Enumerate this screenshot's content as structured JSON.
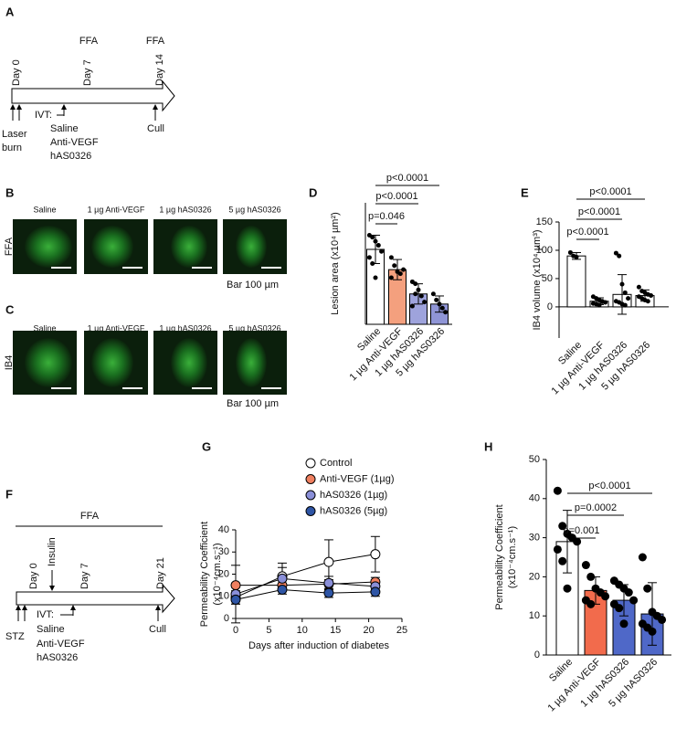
{
  "panel_a": {
    "label": "A",
    "ffa": [
      "FFA",
      "FFA"
    ],
    "days": [
      "Day 0",
      "Day 7",
      "Day 14"
    ],
    "start": [
      "Laser",
      "burn"
    ],
    "ivt": "IVT:",
    "treatments": [
      "Saline",
      "Anti-VEGF",
      "hAS0326"
    ],
    "end": "Cull"
  },
  "panel_b": {
    "label": "B",
    "row": "FFA",
    "columns": [
      "Saline",
      "1 µg Anti-VEGF",
      "1 µg hAS0326",
      "5 µg hAS0326"
    ],
    "scale": "Bar 100 µm"
  },
  "panel_c": {
    "label": "C",
    "row": "IB4",
    "columns": [
      "Saline",
      "1 µg Anti-VEGF",
      "1 µg hAS0326",
      "5 µg hAS0326"
    ],
    "scale": "Bar 100 µm"
  },
  "panel_f": {
    "label": "F",
    "ffa": "FFA",
    "insulin": "Insulin",
    "days": [
      "Day 0",
      "Day 7",
      "Day 21"
    ],
    "start": "STZ",
    "ivt": "IVT:",
    "treatments": [
      "Saline",
      "Anti-VEGF",
      "hAS0326"
    ],
    "end": "Cull"
  },
  "chart_data": [
    {
      "panel": "D",
      "type": "bar",
      "ylabel": "Lesion area (x10⁴ µm²)",
      "categories": [
        "Saline",
        "1 µg Anti-VEGF",
        "1 µg hAS0326",
        "5 µg hAS0326"
      ],
      "values": [
        3.7,
        2.7,
        1.5,
        1.0
      ],
      "errors": [
        0.7,
        0.5,
        0.5,
        0.4
      ],
      "points": [
        [
          4.4,
          4.3,
          4.1,
          3.9,
          3.6,
          3.3,
          3.0,
          2.3
        ],
        [
          3.3,
          2.9,
          2.6,
          2.5,
          2.7,
          2.3
        ],
        [
          2.1,
          2.0,
          1.7,
          1.4,
          1.1,
          0.9,
          1.5
        ],
        [
          1.5,
          1.2,
          1.0,
          0.8,
          0.6
        ]
      ],
      "colors": [
        "#ffffff",
        "#f4a07e",
        "#9ea3dc",
        "#8f95d6"
      ],
      "ylim": [
        0,
        6
      ],
      "annotations": [
        "p=0.046",
        "p<0.0001",
        "p<0.0001"
      ]
    },
    {
      "panel": "E",
      "type": "bar",
      "ylabel": "IB4 volume (x10⁴ µm³)",
      "categories": [
        "Saline",
        "1 µg Anti-VEGF",
        "1 µg hAS0326",
        "5 µg hAS0326"
      ],
      "values": [
        90,
        10,
        22,
        20
      ],
      "errors": [
        6,
        6,
        35,
        10
      ],
      "points": [
        [
          96,
          90,
          88
        ],
        [
          18,
          15,
          12,
          10,
          8,
          6,
          5,
          3,
          9
        ],
        [
          95,
          90,
          40,
          25,
          15,
          10,
          8,
          5,
          3
        ],
        [
          35,
          28,
          25,
          22,
          20,
          18,
          15,
          12,
          10
        ]
      ],
      "colors": [
        "#ffffff",
        "#ffffff",
        "#ffffff",
        "#ffffff"
      ],
      "ylim": [
        -55,
        150
      ],
      "yticks": [
        0,
        50,
        100,
        150
      ],
      "annotations": [
        "p<0.0001",
        "p<0.0001",
        "p<0.0001"
      ]
    },
    {
      "panel": "G",
      "type": "line",
      "ylabel": [
        "Permeability Coefficient",
        "(x10⁻⁴cm.s⁻¹)"
      ],
      "xlabel": "Days after induction of diabetes",
      "x": [
        0,
        7,
        14,
        21
      ],
      "series": [
        {
          "name": "Control",
          "color": "#ffffff",
          "values": [
            9.5,
            19,
            25.5,
            29
          ],
          "errors": [
            3,
            6,
            10,
            8
          ]
        },
        {
          "name": "Anti-VEGF (1µg)",
          "color": "#f08060",
          "values": [
            15,
            15,
            15.5,
            16.5
          ],
          "errors": [
            1,
            2,
            2,
            2
          ]
        },
        {
          "name": "hAS0326 (1µg)",
          "color": "#8a8fd8",
          "values": [
            11,
            18,
            16,
            14.5
          ],
          "errors": [
            13,
            5,
            3,
            3
          ]
        },
        {
          "name": "hAS0326 (5µg)",
          "color": "#2e55a5",
          "values": [
            8.5,
            13,
            11.5,
            12
          ],
          "errors": [
            2,
            2,
            2,
            2
          ]
        }
      ],
      "xlim": [
        0,
        25
      ],
      "xticks": [
        0,
        5,
        10,
        15,
        20,
        25
      ],
      "ylim": [
        0,
        40
      ],
      "yticks": [
        0,
        10,
        20,
        30,
        40
      ]
    },
    {
      "panel": "H",
      "type": "bar",
      "ylabel": [
        "Permeability Coefficient",
        "(x10⁻⁴cm.s⁻¹)"
      ],
      "categories": [
        "Saline",
        "1 µg Anti-VEGF",
        "1 µg hAS0326",
        "5 µg hAS0326"
      ],
      "values": [
        29,
        16.5,
        14,
        10.5
      ],
      "errors": [
        8,
        3.5,
        4,
        8
      ],
      "points": [
        [
          42,
          33,
          31,
          30,
          29,
          27,
          24,
          17
        ],
        [
          23,
          20,
          17,
          16,
          15,
          14,
          13
        ],
        [
          19,
          18,
          17,
          16,
          14,
          13,
          12,
          8
        ],
        [
          25,
          17,
          11,
          10,
          9,
          8,
          7,
          6
        ]
      ],
      "colors": [
        "#ffffff",
        "#f26b4c",
        "#4f68c8",
        "#4f68c8"
      ],
      "ylim": [
        0,
        50
      ],
      "yticks": [
        0,
        10,
        20,
        30,
        40,
        50
      ],
      "annotations": [
        "p=0.001",
        "p=0.0002",
        "p<0.0001"
      ]
    }
  ]
}
